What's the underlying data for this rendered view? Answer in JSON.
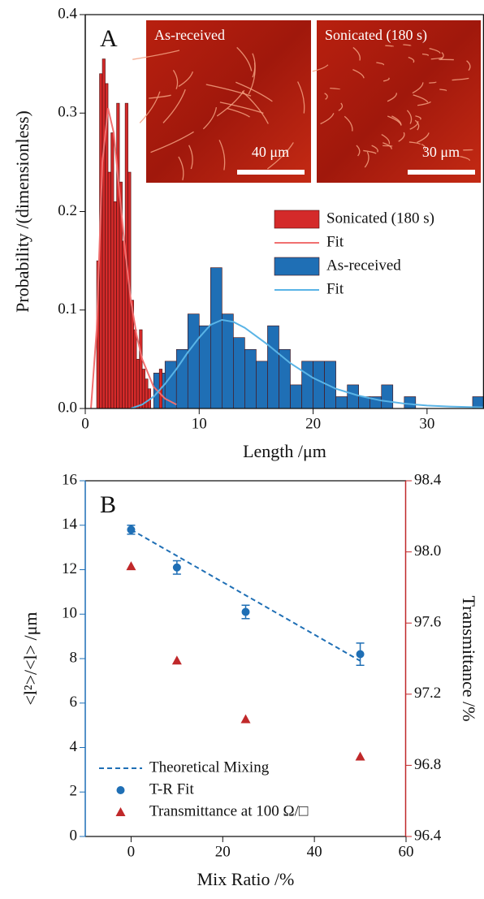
{
  "chart_data": [
    {
      "type": "histogram",
      "panel_label": "A",
      "xlabel": "Length /μm",
      "ylabel": "Probability /(dimensionless)",
      "xlim": [
        0,
        35
      ],
      "ylim": [
        0,
        0.4
      ],
      "xticks": [
        0,
        10,
        20,
        30
      ],
      "yticks": [
        {
          "value": 0,
          "label": "0.0"
        },
        0.1,
        0.2,
        0.3,
        0.4
      ],
      "insets": [
        {
          "label": "As-received",
          "scale_bar": "40 μm"
        },
        {
          "label": "Sonicated (180 s)",
          "scale_bar": "30 μm"
        }
      ],
      "series": [
        {
          "name": "Sonicated (180 s)",
          "type": "histogram",
          "color": "#d42a2a",
          "bins": [
            1,
            1.25,
            1.5,
            1.75,
            2,
            2.25,
            2.5,
            2.75,
            3,
            3.25,
            3.5,
            3.75,
            4,
            4.25,
            4.5,
            4.75,
            5,
            5.25,
            5.5,
            5.75,
            6,
            6.25,
            6.5,
            6.75,
            7
          ],
          "values": [
            0.15,
            0.34,
            0.355,
            0.33,
            0.24,
            0.28,
            0.21,
            0.31,
            0.23,
            0.17,
            0.31,
            0.24,
            0.11,
            0.08,
            0.05,
            0.08,
            0.04,
            0.03,
            0.02,
            0,
            0,
            0,
            0.04,
            0
          ]
        },
        {
          "name": "Fit",
          "type": "line",
          "color": "#f07070",
          "x": [
            0.5,
            1,
            1.5,
            2,
            2.5,
            3,
            3.5,
            4,
            4.5,
            5,
            6,
            7,
            8
          ],
          "values": [
            0,
            0.08,
            0.25,
            0.305,
            0.28,
            0.22,
            0.16,
            0.11,
            0.075,
            0.05,
            0.022,
            0.01,
            0.004
          ]
        },
        {
          "name": "As-received",
          "type": "histogram",
          "color": "#1f6fb5",
          "bins": [
            2,
            3,
            4,
            5,
            6,
            7,
            8,
            9,
            10,
            11,
            12,
            13,
            14,
            15,
            16,
            17,
            18,
            19,
            20,
            21,
            22,
            23,
            24,
            25,
            26,
            27,
            28,
            29,
            30,
            31,
            32,
            33,
            34,
            35
          ],
          "values": [
            0.012,
            0,
            0,
            0,
            0.036,
            0.048,
            0.06,
            0.096,
            0.084,
            0.143,
            0.096,
            0.072,
            0.06,
            0.048,
            0.084,
            0.06,
            0.024,
            0.048,
            0.048,
            0.048,
            0.012,
            0.024,
            0.012,
            0.012,
            0.024,
            0,
            0.012,
            0,
            0,
            0,
            0,
            0,
            0.012
          ]
        },
        {
          "name": "Fit",
          "type": "line",
          "color": "#5ab4e6",
          "x": [
            4,
            5,
            6,
            7,
            8,
            9,
            10,
            11,
            12,
            13,
            14,
            16,
            18,
            20,
            22,
            24,
            26,
            28,
            30,
            32,
            35
          ],
          "values": [
            0,
            0.004,
            0.012,
            0.025,
            0.04,
            0.057,
            0.072,
            0.085,
            0.09,
            0.088,
            0.082,
            0.065,
            0.046,
            0.031,
            0.02,
            0.013,
            0.008,
            0.005,
            0.003,
            0.002,
            0.001
          ]
        }
      ]
    },
    {
      "type": "scatter",
      "panel_label": "B",
      "xlabel": "Mix Ratio /%",
      "ylabel": "<l²>/<l> /μm",
      "y2label": "Transmittance /%",
      "xlim": [
        -10,
        60
      ],
      "xticks": [
        0,
        20,
        40,
        60
      ],
      "ylim": [
        0,
        16
      ],
      "yticks": [
        0,
        2,
        4,
        6,
        8,
        10,
        12,
        14,
        16
      ],
      "y2lim": [
        96.4,
        98.4
      ],
      "y2ticks": [
        96.4,
        96.8,
        97.2,
        97.6,
        {
          "value": 98,
          "label": "98.0"
        },
        98.4
      ],
      "axis_colors": {
        "y": "#1f6fb5",
        "y2": "#c0282a"
      },
      "series": [
        {
          "name": "Theoretical Mixing",
          "type": "line",
          "dashed": true,
          "color": "#1f6fb5",
          "x": [
            0,
            50
          ],
          "values": [
            13.8,
            7.9
          ]
        },
        {
          "name": "T-R Fit",
          "type": "scatter",
          "marker": "circle",
          "color": "#1f6fb5",
          "x": [
            0,
            10,
            25,
            50
          ],
          "values": [
            13.8,
            12.1,
            10.1,
            8.2
          ],
          "errors": [
            0.2,
            0.3,
            0.3,
            0.5
          ]
        },
        {
          "name": "Transmittance at 100 Ω/□",
          "type": "scatter",
          "marker": "triangle",
          "axis": "y2",
          "color": "#c0282a",
          "x": [
            0,
            10,
            25,
            50
          ],
          "values": [
            97.92,
            97.39,
            97.06,
            96.85
          ]
        }
      ]
    }
  ]
}
